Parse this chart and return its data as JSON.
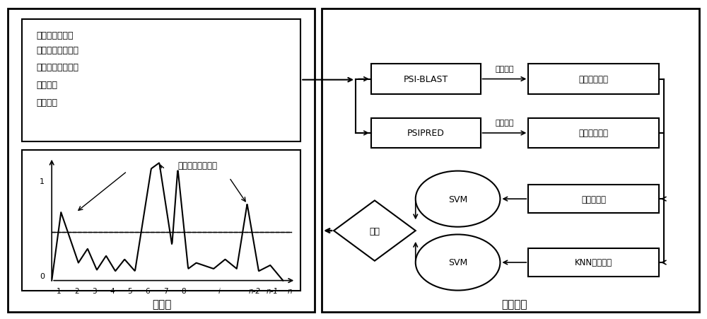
{
  "bg_color": "#ffffff",
  "border_color": "#000000",
  "text_color": "#000000",
  "input_title": "用户输入界面：",
  "input_lines": [
    "待预测蛋白质名称",
    "待预测蛋白质序列",
    "电子邮箱",
    "分割阈值"
  ],
  "client_label": "客户端",
  "server_label": "服务器端",
  "psi_blast_label": "PSI-BLAST",
  "psipred_label": "PSIPRED",
  "feat_extract1_label": "特征抽取",
  "feat_extract2_label": "特征抽取",
  "evol_label": "进化信息特征",
  "struct_label": "二级结构特征",
  "svm_label": "SVM",
  "random_label": "随机下采样",
  "knn_label": "KNN动态采样",
  "diamond_label": "集成",
  "plot_title": "预测出的绑定位点",
  "x_labels": [
    "1",
    "2",
    "3",
    "4",
    "5",
    "6",
    "7",
    "8",
    "···",
    "i",
    "···",
    "n-2",
    "n-1",
    "n"
  ]
}
